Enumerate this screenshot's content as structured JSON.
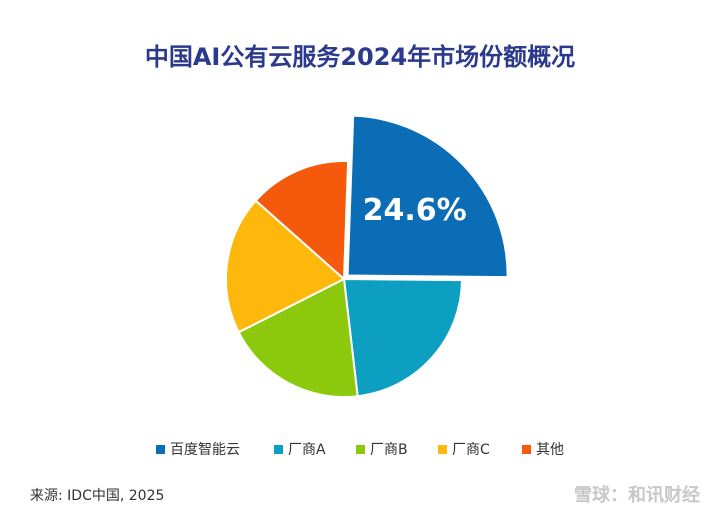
{
  "chart_data": {
    "type": "pie",
    "title": "中国AI公有云服务2024年市场份额概况",
    "categories": [
      "百度智能云",
      "厂商A",
      "厂商B",
      "厂商C",
      "其他"
    ],
    "values": [
      24.6,
      23,
      19.4,
      19,
      14
    ],
    "value_labels": [
      "24.6%",
      null,
      null,
      null,
      null
    ],
    "colors": [
      "#0b6db5",
      "#0d9fc2",
      "#8cc90c",
      "#fdb80b",
      "#f4590c"
    ],
    "exploded": [
      true,
      false,
      false,
      false,
      false
    ],
    "legend": "bottom",
    "source": "来源: IDC中国, 2025",
    "watermark": "雪球：和讯财经"
  }
}
